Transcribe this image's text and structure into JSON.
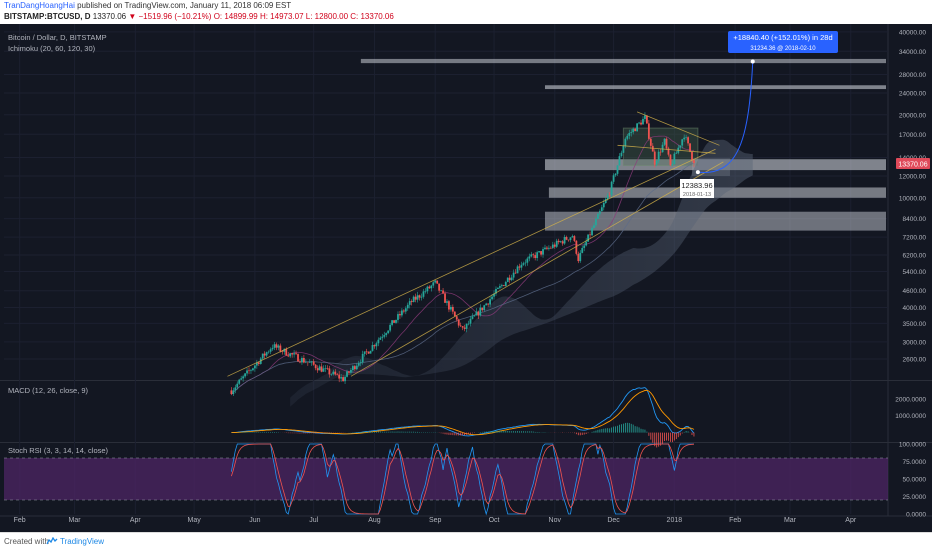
{
  "header": {
    "author": "TranDangHoangHai",
    "published_text": "published on TradingView.com, January 11, 2018 06:09 EST",
    "symbol": "BITSTAMP:BTCUSD, D",
    "price": "13370.06",
    "change": "▼ −1519.96 (−10.21%)",
    "ohlc": "O: 14899.99 H: 14973.07 L: 12800.00 C: 13370.06"
  },
  "legend": {
    "instrument": "Bitcoin / Dollar, D, BITSTAMP",
    "ichimoku": "Ichimoku (20, 60, 120, 30)",
    "macd": "MACD (12, 26, close, 9)",
    "stoch": "Stoch RSI (3, 3, 14, 14, close)"
  },
  "callouts": {
    "projection_line1": "+18840.40 (+152.01%) in 28d",
    "projection_line2": "31234.36  @ 2018-02-10",
    "low_value": "12383.96",
    "low_date": "2018-01-13",
    "last_price": "13370.06"
  },
  "footer": {
    "created_with": "Created with",
    "brand": "TradingView"
  },
  "colors": {
    "background": "#131722",
    "candle_up": "#26a69a",
    "candle_down": "#ef5350",
    "macd_line": "#2196f3",
    "signal_line": "#ff9800",
    "stoch_k": "#2196f3",
    "stoch_d": "#ef5350",
    "rsi_band": "#4a2460",
    "trendline": "#d4b34a",
    "projection": "#2962ff"
  },
  "chart_data": {
    "type": "candlestick",
    "x_ticks": [
      "Feb",
      "Mar",
      "Apr",
      "May",
      "Jun",
      "Jul",
      "Aug",
      "Sep",
      "Oct",
      "Nov",
      "Dec",
      "2018",
      "Feb",
      "Mar",
      "Apr"
    ],
    "price_axis": {
      "scale": "log",
      "ticks": [
        "40000.00",
        "34000.00",
        "28000.00",
        "24000.00",
        "20000.00",
        "17000.00",
        "14000.00",
        "12000.00",
        "10000.00",
        "8400.00",
        "7200.00",
        "6200.00",
        "5400.00",
        "4600.00",
        "4000.00",
        "3500.00",
        "3000.00",
        "2600.00"
      ],
      "range": [
        2200,
        42000
      ]
    },
    "price_path": [
      [
        "2017-05-20",
        2000
      ],
      [
        "2017-06-10",
        2900
      ],
      [
        "2017-07-16",
        2200
      ],
      [
        "2017-08-20",
        4200
      ],
      [
        "2017-09-01",
        4900
      ],
      [
        "2017-09-15",
        3300
      ],
      [
        "2017-10-15",
        5800
      ],
      [
        "2017-11-10",
        7300
      ],
      [
        "2017-11-13",
        6000
      ],
      [
        "2017-11-29",
        10500
      ],
      [
        "2017-12-07",
        16500
      ],
      [
        "2017-12-17",
        19500
      ],
      [
        "2017-12-22",
        13500
      ],
      [
        "2017-12-27",
        16000
      ],
      [
        "2017-12-30",
        13000
      ],
      [
        "2018-01-06",
        17000
      ],
      [
        "2018-01-11",
        13370
      ]
    ],
    "macd": {
      "ticks": [
        "2000.0000",
        "1000.0000"
      ],
      "range": [
        -500,
        3000
      ]
    },
    "stoch_rsi": {
      "ticks": [
        "100.0000",
        "75.0000",
        "50.0000",
        "25.0000",
        "0.0000"
      ],
      "range": [
        0,
        100
      ],
      "band": [
        20,
        80
      ]
    },
    "projection": {
      "label": "+18840.40 (+152.01%) in 28d",
      "target_price": 31234.36,
      "target_date": "2018-02-10"
    }
  }
}
